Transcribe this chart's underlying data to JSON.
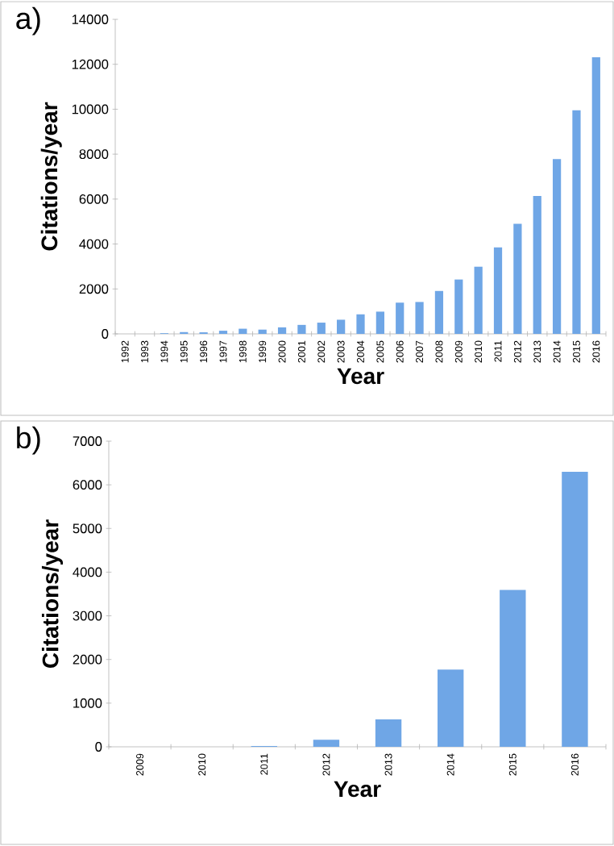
{
  "chart_data": [
    {
      "type": "bar",
      "annotations": [
        "a)"
      ],
      "xlabel": "Year",
      "ylabel": "Citations/year",
      "color": "#6fa6e6",
      "categories": [
        "1992",
        "1993",
        "1994",
        "1995",
        "1996",
        "1997",
        "1998",
        "1999",
        "2000",
        "2001",
        "2002",
        "2003",
        "2004",
        "2005",
        "2006",
        "2007",
        "2008",
        "2009",
        "2010",
        "2011",
        "2012",
        "2013",
        "2014",
        "2015",
        "2016"
      ],
      "values": [
        0,
        0,
        30,
        80,
        70,
        140,
        230,
        190,
        290,
        400,
        500,
        630,
        870,
        990,
        1390,
        1420,
        1910,
        2420,
        2990,
        3850,
        4900,
        6140,
        7780,
        9950,
        12310
      ],
      "ylim": [
        0,
        14000
      ],
      "yticks": [
        0,
        2000,
        4000,
        6000,
        8000,
        10000,
        12000,
        14000
      ]
    },
    {
      "type": "bar",
      "annotations": [
        "b)"
      ],
      "xlabel": "Year",
      "ylabel": "Citations/year",
      "color": "#6fa6e6",
      "categories": [
        "2009",
        "2010",
        "2011",
        "2012",
        "2013",
        "2014",
        "2015",
        "2016"
      ],
      "values": [
        0,
        0,
        20,
        160,
        630,
        1770,
        3590,
        6300
      ],
      "ylim": [
        0,
        7000
      ],
      "yticks": [
        0,
        1000,
        2000,
        3000,
        4000,
        5000,
        6000,
        7000
      ]
    }
  ]
}
